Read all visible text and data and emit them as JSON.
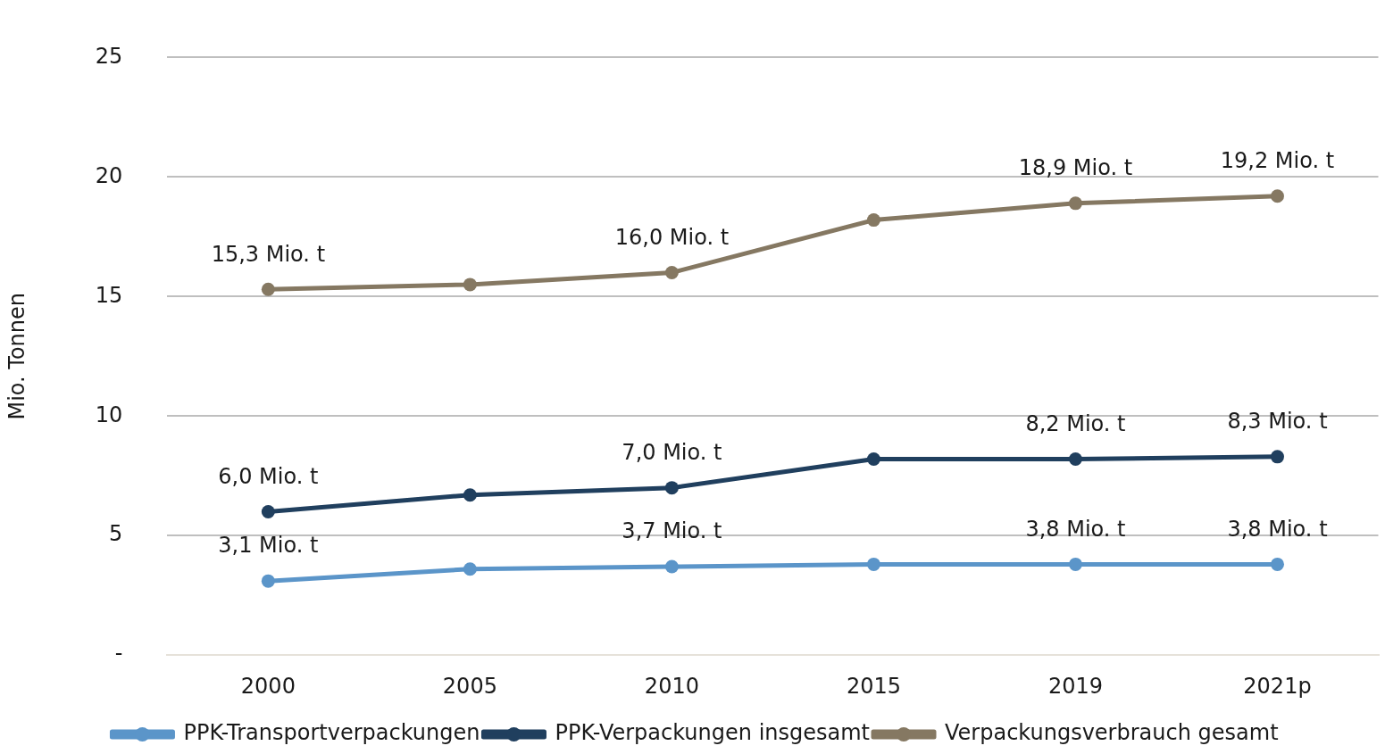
{
  "chart_data": {
    "type": "line",
    "ylabel": "Mio. Tonnen",
    "categories": [
      "2000",
      "2005",
      "2010",
      "2015",
      "2019",
      "2021p"
    ],
    "series": [
      {
        "name": "PPK-Transportverpackungen",
        "color": "#5b95c9",
        "values": [
          3.1,
          3.6,
          3.7,
          3.8,
          3.8,
          3.8
        ],
        "value_labels": [
          "3,1 Mio. t",
          null,
          "3,7 Mio. t",
          null,
          "3,8 Mio. t",
          "3,8 Mio. t"
        ]
      },
      {
        "name": "PPK-Verpackungen insgesamt",
        "color": "#203f5e",
        "values": [
          6.0,
          6.7,
          7.0,
          8.2,
          8.2,
          8.3
        ],
        "value_labels": [
          "6,0 Mio. t",
          null,
          "7,0 Mio. t",
          null,
          "8,2 Mio. t",
          "8,3 Mio. t"
        ]
      },
      {
        "name": "Verpackungsverbrauch gesamt",
        "color": "#857862",
        "values": [
          15.3,
          15.5,
          16.0,
          18.2,
          18.9,
          19.2
        ],
        "value_labels": [
          "15,3 Mio. t",
          null,
          "16,0 Mio. t",
          null,
          "18,9 Mio. t",
          "19,2 Mio. t"
        ]
      }
    ],
    "ylim": [
      0,
      25
    ],
    "yticks": [
      {
        "value": 0,
        "label": "-"
      },
      5,
      10,
      15,
      20,
      25
    ],
    "grid": "y",
    "legend": "bottom",
    "marker": "circle",
    "line_style": "solid"
  }
}
